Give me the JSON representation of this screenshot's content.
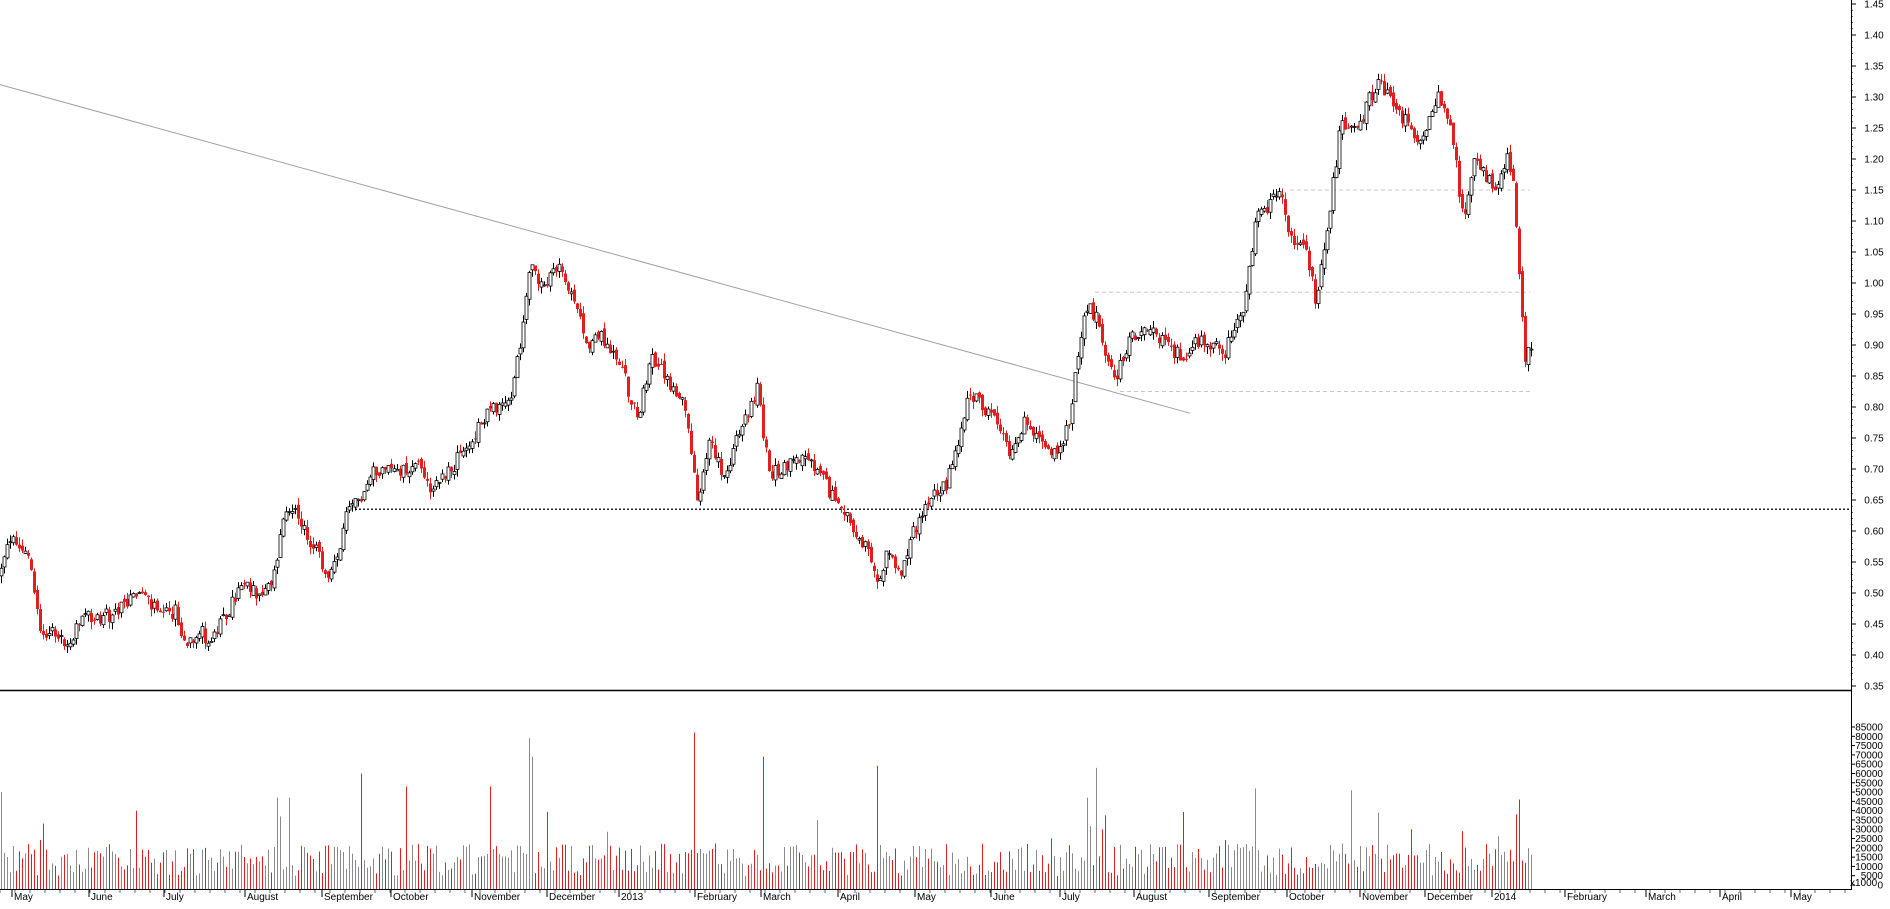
{
  "colors": {
    "up": "#000000",
    "down": "#e41e1e",
    "trendline": "#a0a0a0",
    "support_dotted": "#222222",
    "support_dashed": "#c8c8c8",
    "grid_text": "#000000"
  },
  "volume_axis_note": "x1000",
  "chart_data": [
    {
      "type": "candlestick",
      "title": "",
      "ylabel": "",
      "ylim": [
        0.35,
        1.45
      ],
      "yticks": [
        "0.35",
        "0.40",
        "0.45",
        "0.50",
        "0.55",
        "0.60",
        "0.65",
        "0.70",
        "0.75",
        "0.80",
        "0.85",
        "0.90",
        "0.95",
        "1.00",
        "1.05",
        "1.10",
        "1.15",
        "1.20",
        "1.25",
        "1.30",
        "1.35",
        "1.40",
        "1.45"
      ],
      "months": [
        "May",
        "June",
        "July",
        "August",
        "September",
        "October",
        "November",
        "December",
        "2013",
        "February",
        "March",
        "April",
        "May",
        "June",
        "July",
        "August",
        "September",
        "October",
        "November",
        "December",
        "2014",
        "February",
        "March",
        "April",
        "May"
      ],
      "anchors": [
        [
          0,
          0.53
        ],
        [
          10,
          0.59
        ],
        [
          22,
          0.57
        ],
        [
          30,
          0.55
        ],
        [
          40,
          0.44
        ],
        [
          55,
          0.44
        ],
        [
          68,
          0.41
        ],
        [
          82,
          0.46
        ],
        [
          100,
          0.46
        ],
        [
          118,
          0.47
        ],
        [
          130,
          0.49
        ],
        [
          142,
          0.5
        ],
        [
          160,
          0.46
        ],
        [
          175,
          0.47
        ],
        [
          183,
          0.42
        ],
        [
          200,
          0.44
        ],
        [
          210,
          0.42
        ],
        [
          225,
          0.46
        ],
        [
          240,
          0.51
        ],
        [
          260,
          0.5
        ],
        [
          272,
          0.51
        ],
        [
          282,
          0.61
        ],
        [
          293,
          0.64
        ],
        [
          303,
          0.6
        ],
        [
          318,
          0.56
        ],
        [
          328,
          0.52
        ],
        [
          336,
          0.55
        ],
        [
          346,
          0.62
        ],
        [
          362,
          0.66
        ],
        [
          375,
          0.7
        ],
        [
          400,
          0.7
        ],
        [
          420,
          0.71
        ],
        [
          430,
          0.67
        ],
        [
          450,
          0.7
        ],
        [
          470,
          0.74
        ],
        [
          490,
          0.8
        ],
        [
          510,
          0.81
        ],
        [
          518,
          0.88
        ],
        [
          530,
          1.04
        ],
        [
          543,
          0.99
        ],
        [
          560,
          1.03
        ],
        [
          576,
          0.95
        ],
        [
          590,
          0.9
        ],
        [
          600,
          0.92
        ],
        [
          622,
          0.86
        ],
        [
          637,
          0.78
        ],
        [
          650,
          0.88
        ],
        [
          665,
          0.85
        ],
        [
          683,
          0.8
        ],
        [
          690,
          0.74
        ],
        [
          698,
          0.63
        ],
        [
          708,
          0.75
        ],
        [
          724,
          0.69
        ],
        [
          745,
          0.78
        ],
        [
          758,
          0.83
        ],
        [
          764,
          0.74
        ],
        [
          770,
          0.69
        ],
        [
          800,
          0.72
        ],
        [
          815,
          0.7
        ],
        [
          835,
          0.65
        ],
        [
          848,
          0.63
        ],
        [
          855,
          0.58
        ],
        [
          866,
          0.57
        ],
        [
          878,
          0.51
        ],
        [
          888,
          0.57
        ],
        [
          900,
          0.53
        ],
        [
          916,
          0.61
        ],
        [
          930,
          0.66
        ],
        [
          945,
          0.67
        ],
        [
          955,
          0.73
        ],
        [
          970,
          0.82
        ],
        [
          990,
          0.79
        ],
        [
          1010,
          0.73
        ],
        [
          1025,
          0.78
        ],
        [
          1038,
          0.74
        ],
        [
          1058,
          0.73
        ],
        [
          1070,
          0.78
        ],
        [
          1085,
          0.97
        ],
        [
          1098,
          0.94
        ],
        [
          1113,
          0.84
        ],
        [
          1130,
          0.91
        ],
        [
          1155,
          0.92
        ],
        [
          1180,
          0.88
        ],
        [
          1200,
          0.91
        ],
        [
          1225,
          0.89
        ],
        [
          1243,
          0.95
        ],
        [
          1256,
          1.1
        ],
        [
          1280,
          1.15
        ],
        [
          1290,
          1.07
        ],
        [
          1305,
          1.05
        ],
        [
          1316,
          0.97
        ],
        [
          1325,
          1.06
        ],
        [
          1340,
          1.25
        ],
        [
          1360,
          1.26
        ],
        [
          1378,
          1.33
        ],
        [
          1398,
          1.28
        ],
        [
          1418,
          1.22
        ],
        [
          1437,
          1.3
        ],
        [
          1450,
          1.26
        ],
        [
          1463,
          1.1
        ],
        [
          1474,
          1.2
        ],
        [
          1494,
          1.15
        ],
        [
          1508,
          1.2
        ],
        [
          1514,
          1.15
        ],
        [
          1524,
          0.88
        ],
        [
          1531,
          0.9
        ]
      ],
      "trendline": [
        [
          0,
          1.32
        ],
        [
          1190,
          0.79
        ]
      ],
      "dotted_support": 0.635,
      "dashed_levels": [
        {
          "x_start": 1290,
          "x_end": 1530,
          "y": 1.15
        },
        {
          "x_start": 1095,
          "x_end": 1530,
          "y": 0.985
        },
        {
          "x_start": 1120,
          "x_end": 1530,
          "y": 0.825
        }
      ]
    },
    {
      "type": "bar",
      "title": "",
      "ylabel": "",
      "ylim": [
        0,
        85000
      ],
      "yticks": [
        "0",
        "5000",
        "10000",
        "15000",
        "20000",
        "25000",
        "30000",
        "35000",
        "40000",
        "45000",
        "50000",
        "55000",
        "60000",
        "65000",
        "70000",
        "75000",
        "80000",
        "85000"
      ],
      "typical_volume": 14000,
      "spikes": [
        [
          2,
          50000
        ],
        [
          42,
          33000
        ],
        [
          135,
          40000
        ],
        [
          277,
          47000
        ],
        [
          288,
          47000
        ],
        [
          362,
          60000
        ],
        [
          407,
          53000
        ],
        [
          490,
          53000
        ],
        [
          528,
          79000
        ],
        [
          531,
          69000
        ],
        [
          694,
          82000
        ],
        [
          763,
          69000
        ],
        [
          878,
          64000
        ],
        [
          1086,
          47000
        ],
        [
          1095,
          63000
        ],
        [
          1254,
          52000
        ],
        [
          1350,
          51000
        ],
        [
          1516,
          38000
        ],
        [
          1518,
          46000
        ]
      ]
    }
  ]
}
